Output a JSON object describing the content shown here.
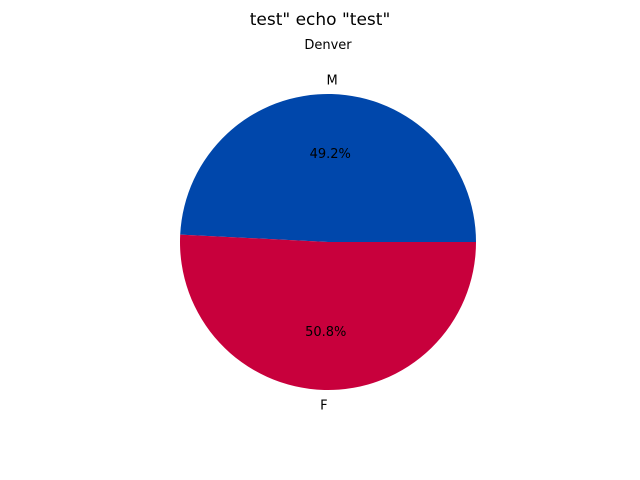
{
  "chart_data": {
    "type": "pie",
    "title": "test\" echo \"test\"",
    "subtitle": "Denver",
    "slices": [
      {
        "label": "M",
        "value": 49.2,
        "pct_label": "49.2%",
        "color": "#0047ab"
      },
      {
        "label": "F",
        "value": 50.8,
        "pct_label": "50.8%",
        "color": "#c8003c"
      }
    ],
    "start_angle_deg": 0,
    "direction": "counterclockwise"
  }
}
